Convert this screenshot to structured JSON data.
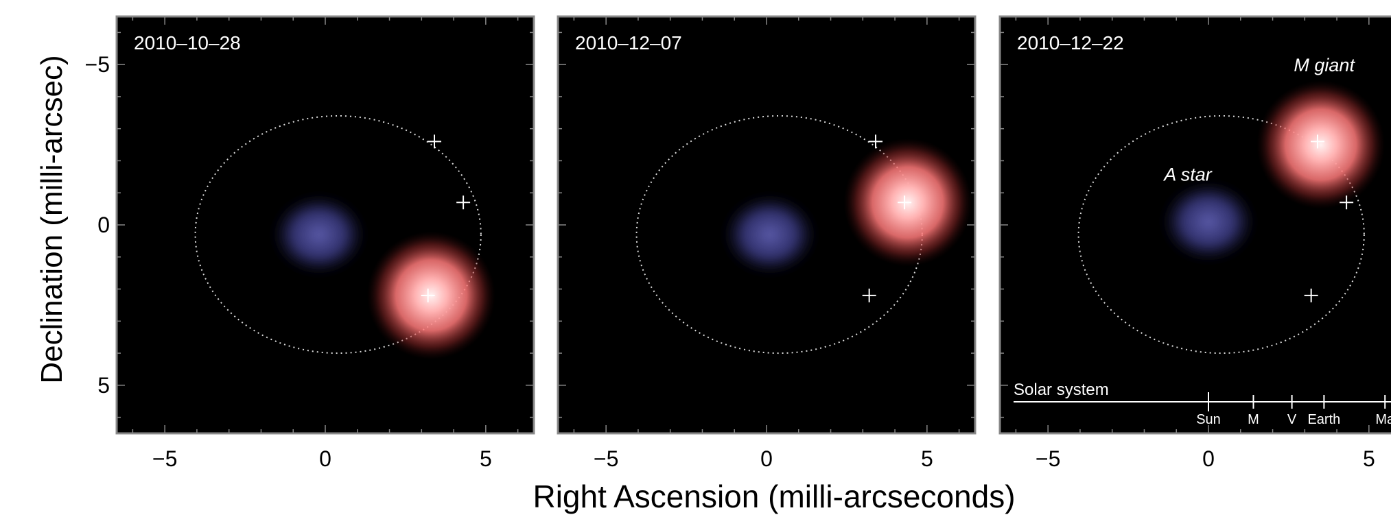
{
  "figure": {
    "ylabel": "Declination (milli-arcsec)",
    "xlabel": "Right Ascension (milli-arcseconds)"
  },
  "chart_data": {
    "type": "scatter",
    "xlim": [
      -6.5,
      6.5
    ],
    "ylim": [
      -6.5,
      6.5
    ],
    "y_inverted": true,
    "x_ticks": [
      -5,
      0,
      5
    ],
    "y_ticks": [
      -5,
      0,
      5
    ],
    "orbit_ellipse": {
      "center": [
        0.4,
        0.3
      ],
      "semi_axes": [
        4.45,
        3.7
      ]
    },
    "orbit_markers": [
      {
        "x": 3.4,
        "y": -2.6
      },
      {
        "x": 4.3,
        "y": -0.7
      },
      {
        "x": 3.2,
        "y": 2.2
      }
    ],
    "panels": [
      {
        "date": "2010–10–28",
        "a_star": {
          "x": -0.2,
          "y": 0.3
        },
        "m_giant": {
          "x": 3.3,
          "y": 2.2
        }
      },
      {
        "date": "2010–12–07",
        "a_star": {
          "x": 0.1,
          "y": 0.3
        },
        "m_giant": {
          "x": 4.4,
          "y": -0.7
        }
      },
      {
        "date": "2010–12–22",
        "a_star": {
          "x": 0.0,
          "y": -0.1
        },
        "m_giant": {
          "x": 3.5,
          "y": -2.5
        },
        "labels": {
          "a_star": "A star",
          "m_giant": "M giant"
        },
        "solar_system": {
          "label": "Solar system",
          "bodies": [
            {
              "name": "Sun",
              "x": 0.0
            },
            {
              "name": "M",
              "x": 1.4
            },
            {
              "name": "V",
              "x": 2.6
            },
            {
              "name": "Earth",
              "x": 3.6
            },
            {
              "name": "Ma",
              "x": 5.5
            }
          ]
        }
      }
    ],
    "colors": {
      "background": "#000000",
      "a_star": "#5a5aa8",
      "m_giant_core": "#fff2f2",
      "m_giant_edge": "#ff7a7a",
      "orbit": "#dddddd",
      "frame": "#888888"
    }
  }
}
